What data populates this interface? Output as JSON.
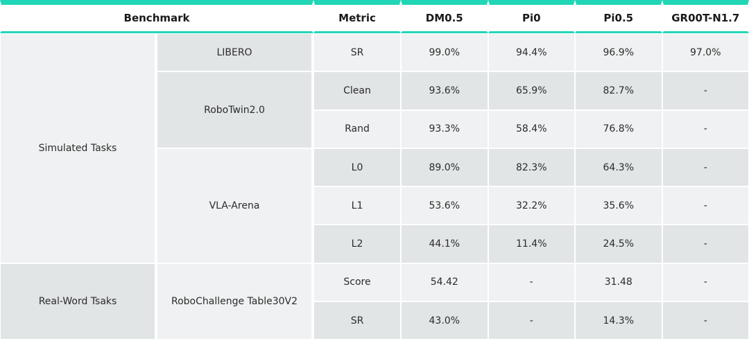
{
  "chart_data": {
    "type": "table",
    "header": {
      "benchmark": "Benchmark",
      "metric": "Metric",
      "models": [
        "DM0.5",
        "Pi0",
        "Pi0.5",
        "GR00T-N1.7"
      ]
    },
    "groups": [
      {
        "category": "Simulated Tasks",
        "benchmarks": [
          {
            "name": "LIBERO",
            "rows": [
              {
                "metric": "SR",
                "values": [
                  "99.0%",
                  "94.4%",
                  "96.9%",
                  "97.0%"
                ]
              }
            ]
          },
          {
            "name": "RoboTwin2.0",
            "rows": [
              {
                "metric": "Clean",
                "values": [
                  "93.6%",
                  "65.9%",
                  "82.7%",
                  "-"
                ]
              },
              {
                "metric": "Rand",
                "values": [
                  "93.3%",
                  "58.4%",
                  "76.8%",
                  "-"
                ]
              }
            ]
          },
          {
            "name": "VLA-Arena",
            "rows": [
              {
                "metric": "L0",
                "values": [
                  "89.0%",
                  "82.3%",
                  "64.3%",
                  "-"
                ]
              },
              {
                "metric": "L1",
                "values": [
                  "53.6%",
                  "32.2%",
                  "35.6%",
                  "-"
                ]
              },
              {
                "metric": "L2",
                "values": [
                  "44.1%",
                  "11.4%",
                  "24.5%",
                  "-"
                ]
              }
            ]
          }
        ]
      },
      {
        "category": "Real-Word Tsaks",
        "benchmarks": [
          {
            "name": "RoboChallenge Table30V2",
            "rows": [
              {
                "metric": "Score",
                "values": [
                  "54.42",
                  "-",
                  "31.48",
                  "-"
                ]
              },
              {
                "metric": "SR",
                "values": [
                  "43.0%",
                  "-",
                  "14.3%",
                  "-"
                ]
              }
            ]
          }
        ]
      }
    ]
  },
  "colors": {
    "accent": "#21d6b7",
    "row_light": "#f0f1f2",
    "row_dark": "#e1e5e6"
  }
}
